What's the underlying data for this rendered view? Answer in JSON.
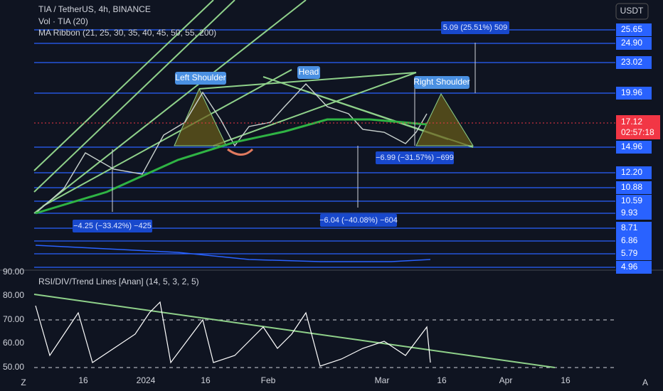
{
  "header": {
    "symbol": "TIA / TetherUS, 4h, BINANCE",
    "indicators": [
      "Vol · TIA (20)",
      "MA Ribbon (21, 25, 30, 35, 40, 45, 50, 55, 200)"
    ]
  },
  "currency": "USDT",
  "price_levels": [
    "25.65",
    "24.90",
    "23.02",
    "19.96",
    "14.96",
    "12.20",
    "10.88",
    "10.59",
    "9.93",
    "8.71",
    "6.86",
    "5.79",
    "4.96"
  ],
  "current_price": {
    "price": "17.12",
    "countdown": "02:57:18"
  },
  "annotations": {
    "left_shoulder": "Left Shoulder",
    "head": "Head",
    "right_shoulder": "Right Shoulder"
  },
  "measurements": [
    "5.09 (25.51%) 509",
    "−6.99 (−31.57%) −699",
    "−6.04 (−40.08%) −604",
    "−4.25 (−33.42%) −425"
  ],
  "rsi": {
    "title": "RSI/DIV/Trend Lines [Anan] (14, 5, 3, 2, 5)",
    "labels": [
      "90.00",
      "80.00",
      "70.00",
      "60.00",
      "50.00"
    ]
  },
  "time_axis": [
    "16",
    "2024",
    "16",
    "Feb",
    "Mar",
    "16",
    "Apr",
    "16"
  ],
  "corners": [
    "Z",
    "A"
  ]
}
